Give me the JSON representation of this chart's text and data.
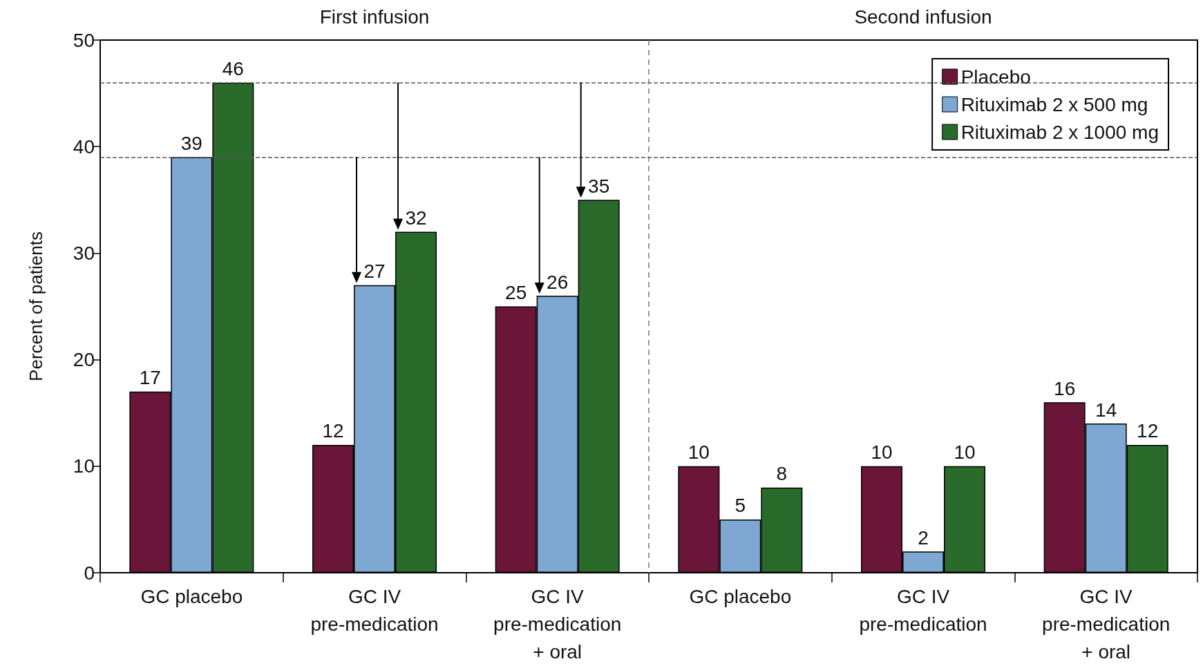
{
  "chart_data": {
    "type": "bar",
    "ylabel": "Percent of patients",
    "categories": [
      "GC placebo",
      "GC IV\npre-medication",
      "GC IV\npre-medication\n+ oral",
      "GC placebo",
      "GC IV\npre-medication",
      "GC IV\npre-medication\n+ oral"
    ],
    "series": [
      {
        "name": "Placebo",
        "color": "#6b1638",
        "values": [
          17,
          12,
          25,
          10,
          10,
          16
        ]
      },
      {
        "name": "Rituximab 2 x 500 mg",
        "color": "#7ea8d2",
        "values": [
          39,
          27,
          26,
          5,
          2,
          14
        ]
      },
      {
        "name": "Rituximab 2 x 1000 mg",
        "color": "#2a6b2c",
        "values": [
          46,
          32,
          35,
          8,
          10,
          12
        ]
      }
    ],
    "ylim": [
      0,
      50
    ],
    "yticks": [
      0,
      10,
      20,
      30,
      40,
      50
    ],
    "grid": false,
    "legend": "top right",
    "data_labels": true,
    "ref_lines": [
      {
        "axis": "y",
        "value": 46,
        "line_style": "dashed",
        "color": "#555555"
      },
      {
        "axis": "y",
        "value": 39,
        "line_style": "dashed",
        "color": "#555555"
      }
    ],
    "annotations": [
      "First infusion",
      "Second infusion"
    ]
  }
}
